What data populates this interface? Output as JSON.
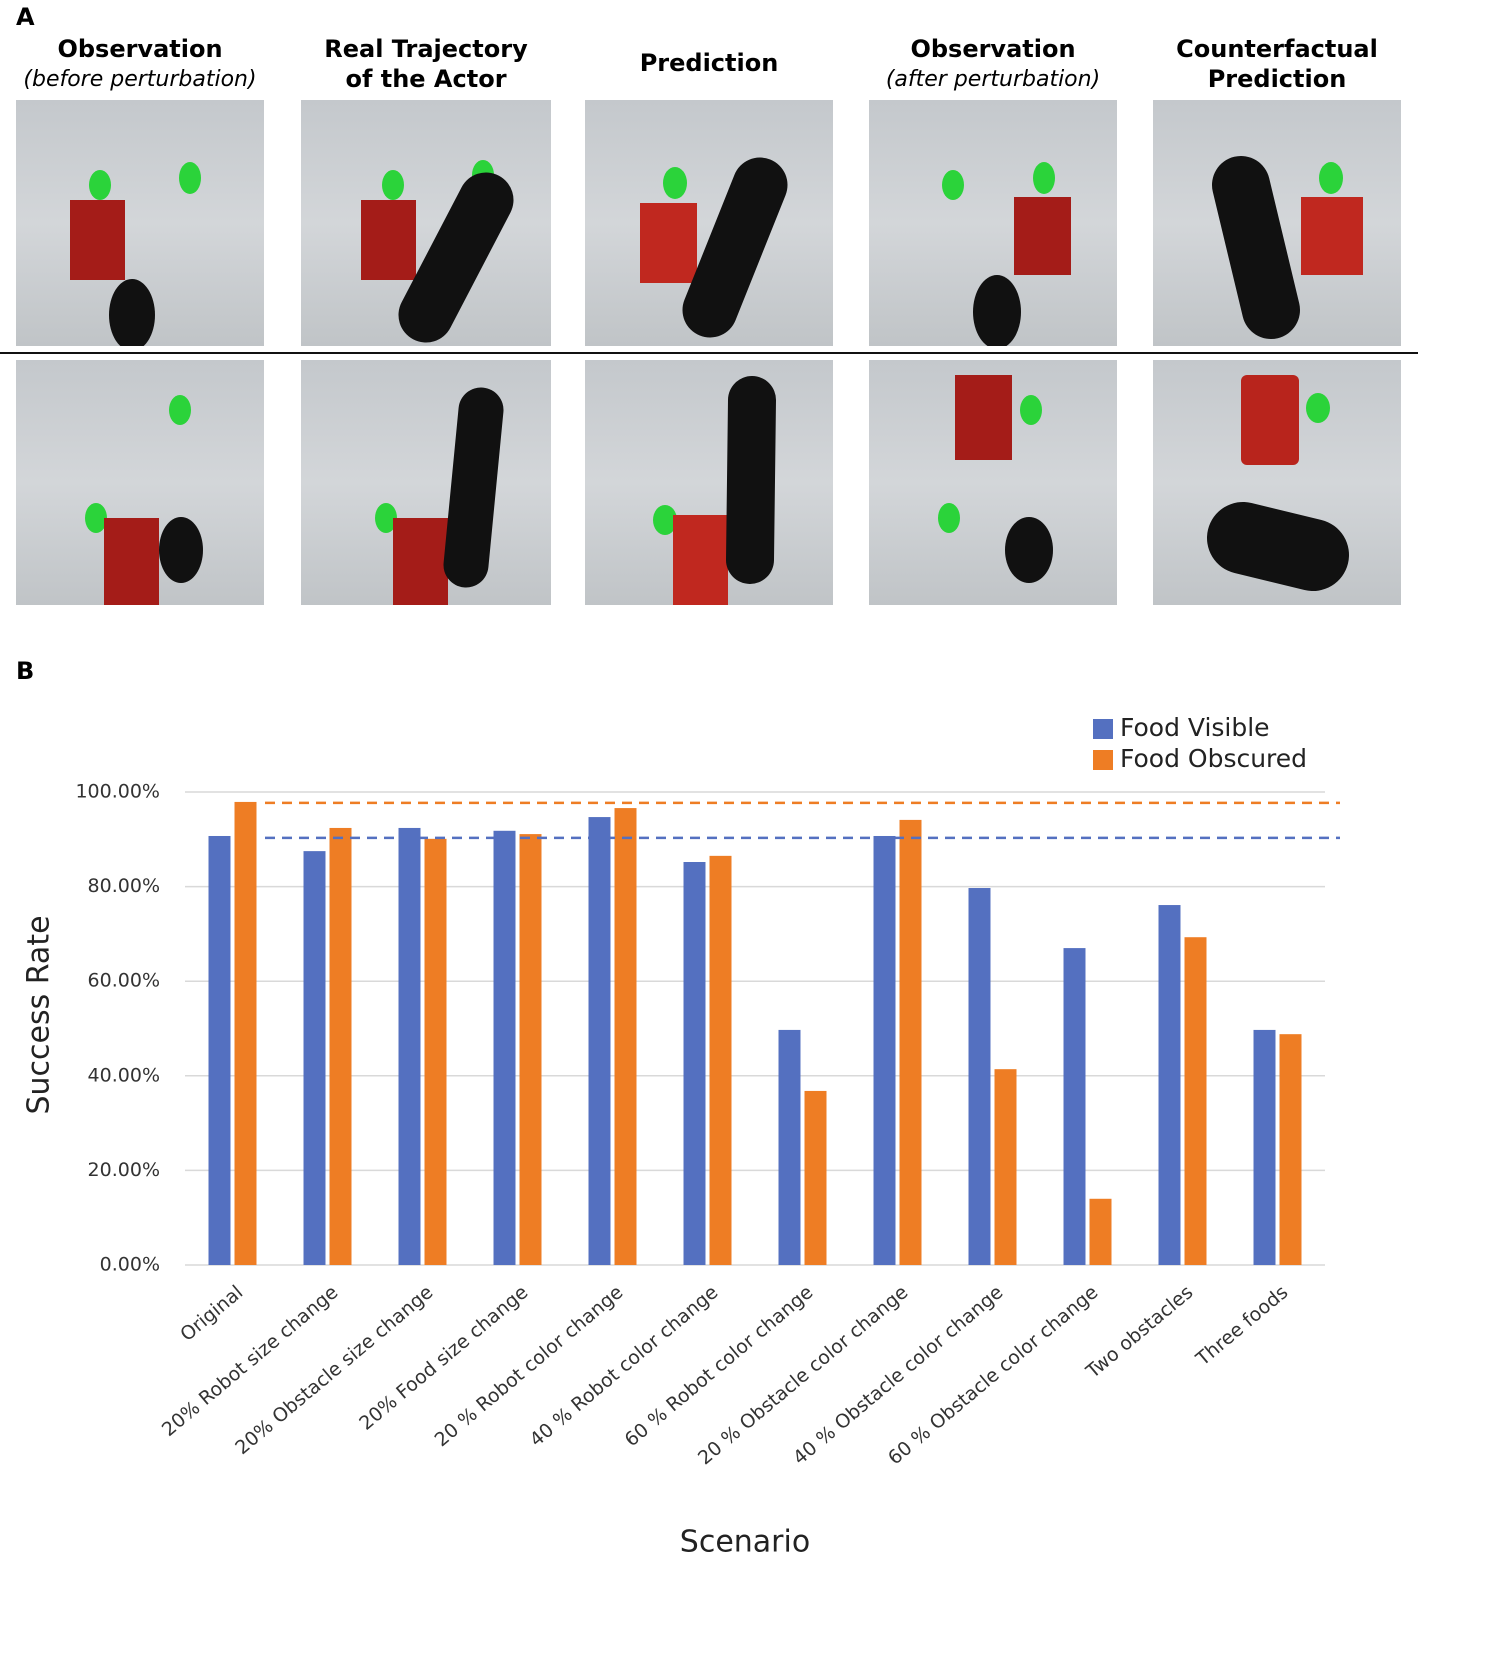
{
  "panel_a": {
    "label": "A",
    "columns": [
      {
        "title": "Observation",
        "subtitle": "(before perturbation)"
      },
      {
        "title": [
          "Real Trajectory",
          "of the Actor"
        ]
      },
      {
        "title": "Prediction"
      },
      {
        "title": "Observation",
        "subtitle": "(after perturbation)"
      },
      {
        "title": [
          "Counterfactual",
          "Prediction"
        ]
      }
    ]
  },
  "panel_b": {
    "label": "B"
  },
  "chart_data": {
    "type": "bar",
    "xlabel": "Scenario",
    "ylabel": "Success Rate",
    "categories": [
      "Original",
      "20% Robot size change",
      "20% Obstacle size change",
      "20% Food size change",
      "20 % Robot color change",
      "40 % Robot color change",
      "60 % Robot color change",
      "20 % Obstacle color change",
      "40 % Obstacle color change",
      "60 % Obstacle color change",
      "Two obstacles",
      "Three foods"
    ],
    "series": [
      {
        "name": "Food Visible",
        "color": "#5470c0",
        "values": [
          90.7,
          87.5,
          92.4,
          91.8,
          94.7,
          85.2,
          49.7,
          90.7,
          79.7,
          67.0,
          76.1,
          49.7
        ]
      },
      {
        "name": "Food Obscured",
        "color": "#ee7d24",
        "values": [
          97.9,
          92.4,
          90.1,
          91.1,
          96.6,
          86.5,
          36.8,
          94.1,
          41.4,
          14.0,
          69.3,
          48.8
        ]
      }
    ],
    "reference_lines": [
      {
        "value": 97.7,
        "color": "#ee7d24"
      },
      {
        "value": 90.3,
        "color": "#5470c0"
      }
    ],
    "ylim": [
      0,
      100
    ],
    "yticks": [
      {
        "value": 0,
        "label": "0.00%"
      },
      {
        "value": 20,
        "label": "20.00%"
      },
      {
        "value": 40,
        "label": "40.00%"
      },
      {
        "value": 60,
        "label": "60.00%"
      },
      {
        "value": 80,
        "label": "80.00%"
      },
      {
        "value": 100,
        "label": "100.00%"
      }
    ],
    "grid": true,
    "legend": "top-right"
  }
}
